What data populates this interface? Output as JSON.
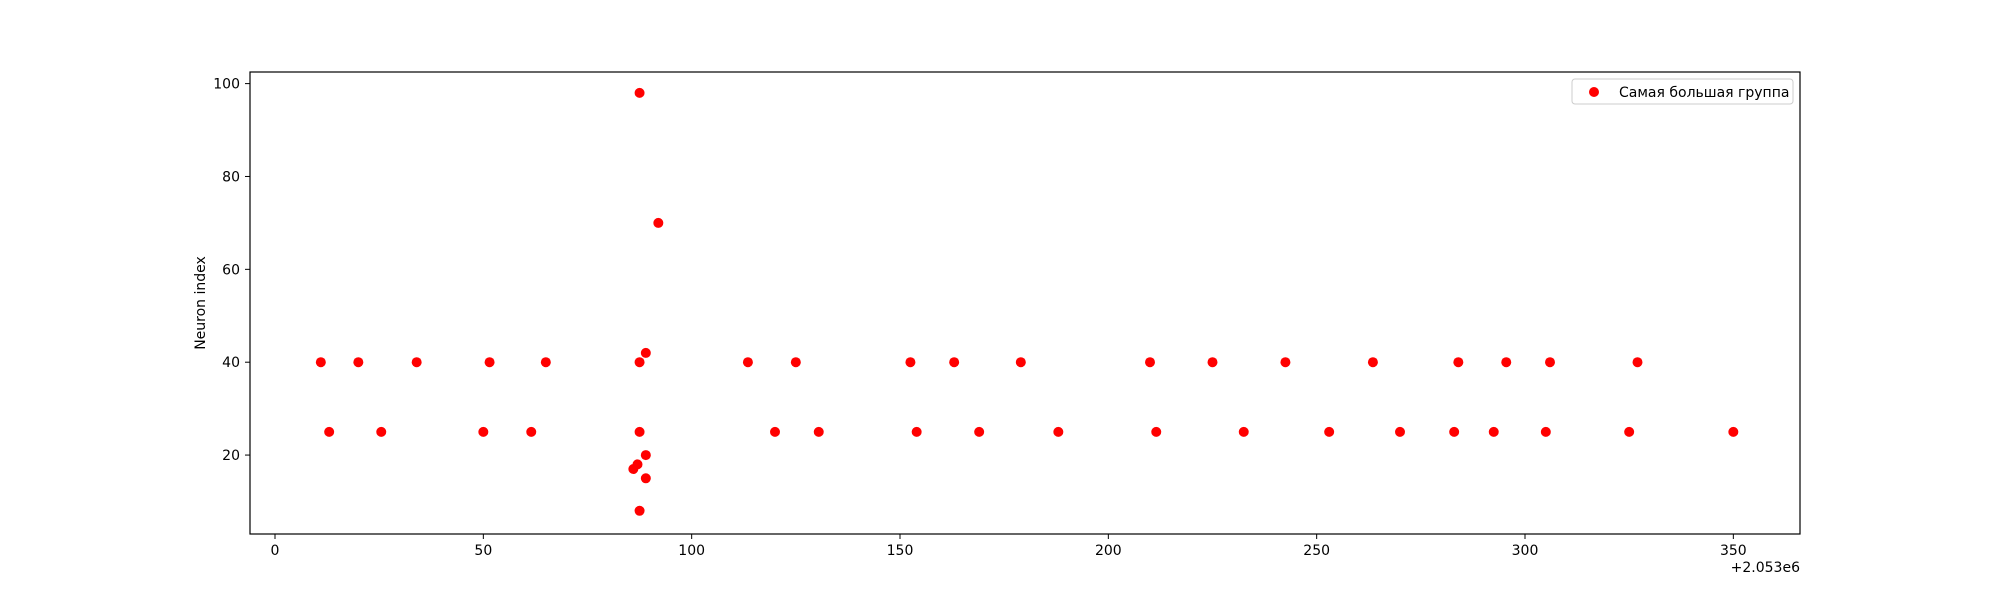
{
  "chart_data": {
    "type": "scatter",
    "title": "",
    "xlabel": "",
    "ylabel": "Neuron index",
    "x_offset_label": "+2.053e6",
    "xlim": [
      -6,
      366
    ],
    "ylim": [
      3,
      102.5
    ],
    "xticks": [
      0,
      50,
      100,
      150,
      200,
      250,
      300,
      350
    ],
    "yticks": [
      20,
      40,
      60,
      80,
      100
    ],
    "grid": false,
    "legend": {
      "position": "upper-right",
      "entries": [
        "Самая большая группа"
      ]
    },
    "series": [
      {
        "name": "Самая большая группа",
        "color": "#ff0000",
        "points": [
          [
            11,
            40
          ],
          [
            13,
            25
          ],
          [
            20,
            40
          ],
          [
            25.5,
            25
          ],
          [
            34,
            40
          ],
          [
            50,
            25
          ],
          [
            51.5,
            40
          ],
          [
            61.5,
            25
          ],
          [
            65,
            40
          ],
          [
            86,
            17
          ],
          [
            87,
            18
          ],
          [
            87.5,
            98
          ],
          [
            87.5,
            40
          ],
          [
            87.5,
            25
          ],
          [
            87.5,
            8
          ],
          [
            89,
            42
          ],
          [
            89,
            20
          ],
          [
            89,
            15
          ],
          [
            92,
            70
          ],
          [
            113.5,
            40
          ],
          [
            120,
            25
          ],
          [
            125,
            40
          ],
          [
            130.5,
            25
          ],
          [
            152.5,
            40
          ],
          [
            154,
            25
          ],
          [
            163,
            40
          ],
          [
            169,
            25
          ],
          [
            179,
            40
          ],
          [
            188,
            25
          ],
          [
            210,
            40
          ],
          [
            211.5,
            25
          ],
          [
            225,
            40
          ],
          [
            232.5,
            25
          ],
          [
            242.5,
            40
          ],
          [
            253,
            25
          ],
          [
            263.5,
            40
          ],
          [
            270,
            25
          ],
          [
            283,
            25
          ],
          [
            284,
            40
          ],
          [
            292.5,
            25
          ],
          [
            295.5,
            40
          ],
          [
            305,
            25
          ],
          [
            306,
            40
          ],
          [
            325,
            25
          ],
          [
            327,
            40
          ],
          [
            350,
            25
          ]
        ]
      }
    ]
  }
}
